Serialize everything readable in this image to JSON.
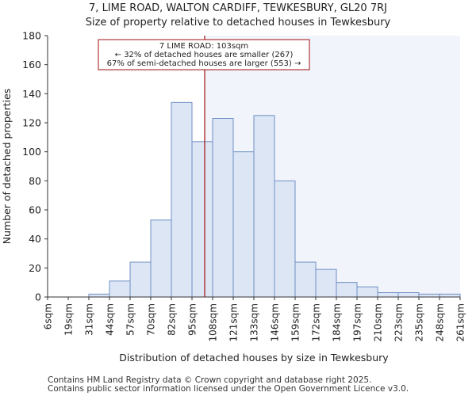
{
  "title": "7, LIME ROAD, WALTON CARDIFF, TEWKESBURY, GL20 7RJ",
  "subtitle": "Size of property relative to detached houses in Tewkesbury",
  "footer": {
    "line1": "Contains HM Land Registry data © Crown copyright and database right 2025.",
    "line2": "Contains public sector information licensed under the Open Government Licence v3.0."
  },
  "chart_data": {
    "type": "bar",
    "title": "7, LIME ROAD, WALTON CARDIFF, TEWKESBURY, GL20 7RJ",
    "subtitle": "Size of property relative to detached houses in Tewkesbury",
    "xlabel": "Distribution of detached houses by size in Tewkesbury",
    "ylabel": "Number of detached properties",
    "ylim": [
      0,
      180
    ],
    "yticks": [
      0,
      20,
      40,
      60,
      80,
      100,
      120,
      140,
      160,
      180
    ],
    "bin_edges": [
      "6sqm",
      "19sqm",
      "31sqm",
      "44sqm",
      "57sqm",
      "70sqm",
      "82sqm",
      "95sqm",
      "108sqm",
      "121sqm",
      "133sqm",
      "146sqm",
      "159sqm",
      "172sqm",
      "184sqm",
      "197sqm",
      "210sqm",
      "223sqm",
      "235sqm",
      "248sqm",
      "261sqm"
    ],
    "values": [
      0,
      0,
      2,
      11,
      24,
      53,
      134,
      107,
      123,
      100,
      125,
      80,
      24,
      19,
      10,
      7,
      3,
      3,
      2,
      2
    ],
    "marker": {
      "value_sqm": 103,
      "label_line1": "7 LIME ROAD: 103sqm",
      "label_line2": "← 32% of detached houses are smaller (267)",
      "label_line3": "67% of semi-detached houses are larger (553) →",
      "color": "#a01010"
    },
    "bar_fill": "#dde6f5",
    "bar_edge": "#6f8fc4",
    "highlight_fill": "#f2f4fb"
  }
}
